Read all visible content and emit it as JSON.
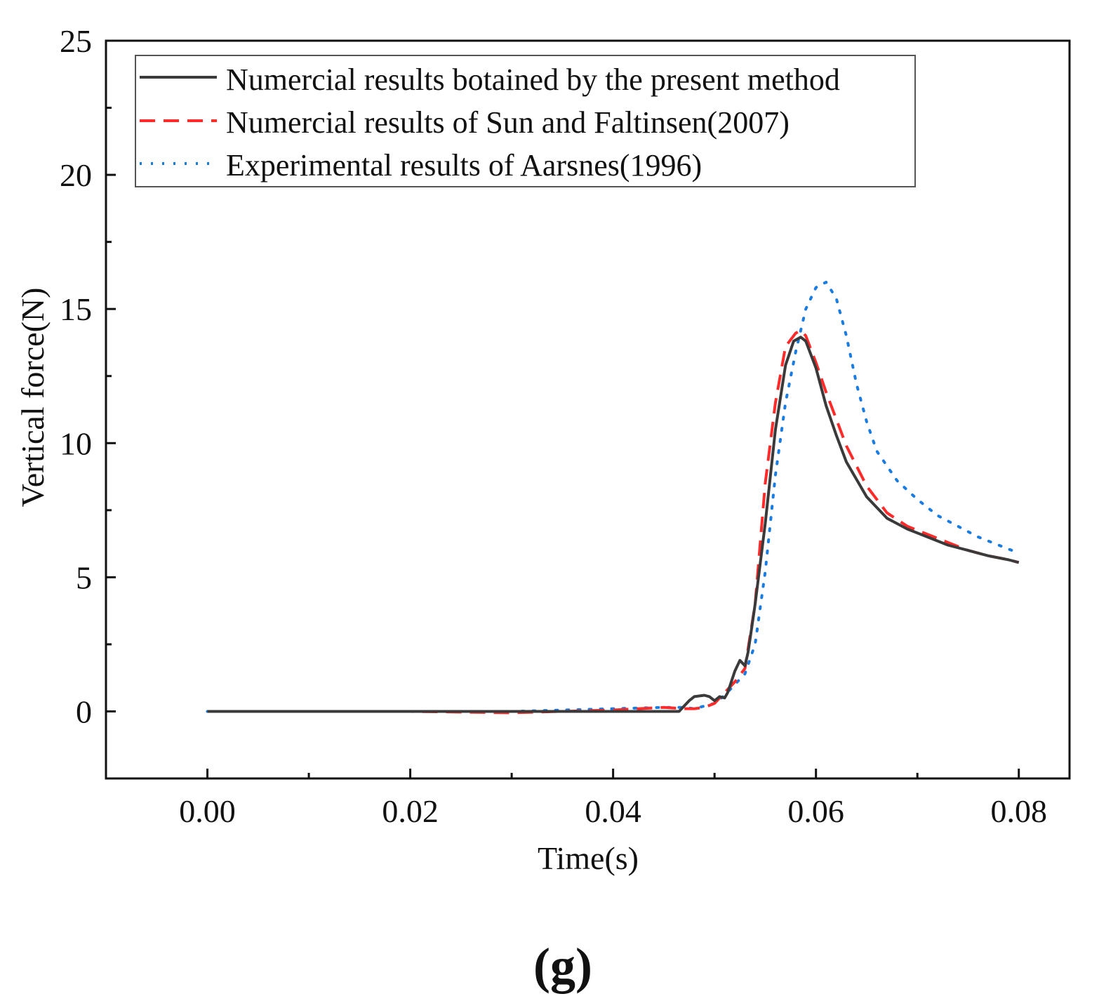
{
  "chart_data": {
    "type": "line",
    "title": "",
    "xlabel": "Time(s)",
    "ylabel": "Vertical force(N)",
    "xlim": [
      -0.01,
      0.085
    ],
    "ylim": [
      -2.5,
      25
    ],
    "xticks": [
      "0.00",
      "0.02",
      "0.04",
      "0.06",
      "0.08"
    ],
    "yticks": [
      "0",
      "5",
      "10",
      "15",
      "20",
      "25"
    ],
    "xtick_values": [
      0.0,
      0.02,
      0.04,
      0.06,
      0.08
    ],
    "ytick_values": [
      0,
      5,
      10,
      15,
      20,
      25
    ],
    "xminor": [
      0.01,
      0.03,
      0.05,
      0.07
    ],
    "yminor": [
      2.5,
      7.5,
      12.5,
      17.5,
      22.5
    ],
    "legend_position": "top-left",
    "panel_label": "(g)",
    "series": [
      {
        "name": "Numercial results botained by the present method",
        "color": "#3a3a3a",
        "style": "solid",
        "x": [
          0.0,
          0.01,
          0.02,
          0.03,
          0.04,
          0.0455,
          0.0465,
          0.0475,
          0.048,
          0.049,
          0.0495,
          0.05,
          0.0505,
          0.051,
          0.0513,
          0.052,
          0.0525,
          0.053,
          0.0533,
          0.0537,
          0.054,
          0.055,
          0.056,
          0.057,
          0.0578,
          0.0585,
          0.059,
          0.06,
          0.061,
          0.062,
          0.063,
          0.065,
          0.067,
          0.069,
          0.071,
          0.073,
          0.075,
          0.077,
          0.079,
          0.08
        ],
        "y": [
          0.0,
          0.0,
          0.0,
          0.0,
          0.0,
          0.0,
          0.0,
          0.4,
          0.55,
          0.6,
          0.55,
          0.4,
          0.55,
          0.5,
          0.7,
          1.5,
          1.9,
          1.7,
          2.2,
          3.2,
          4.0,
          7.0,
          10.5,
          12.9,
          13.8,
          13.95,
          13.8,
          12.8,
          11.4,
          10.3,
          9.3,
          8.0,
          7.2,
          6.8,
          6.5,
          6.2,
          6.0,
          5.8,
          5.65,
          5.55
        ]
      },
      {
        "name": "Numercial results of Sun and Faltinsen(2007)",
        "color": "#ff2a2a",
        "style": "dashed",
        "x": [
          0.0,
          0.01,
          0.02,
          0.03,
          0.04,
          0.045,
          0.047,
          0.048,
          0.049,
          0.05,
          0.051,
          0.052,
          0.053,
          0.054,
          0.055,
          0.056,
          0.057,
          0.058,
          0.0585,
          0.059,
          0.06,
          0.061,
          0.062,
          0.063,
          0.065,
          0.067,
          0.069,
          0.071,
          0.073,
          0.075,
          0.077,
          0.079,
          0.08
        ],
        "y": [
          0.0,
          0.0,
          0.0,
          -0.05,
          0.05,
          0.15,
          0.1,
          0.1,
          0.15,
          0.3,
          0.7,
          1.1,
          1.6,
          4.0,
          8.5,
          11.5,
          13.6,
          14.1,
          14.2,
          14.0,
          13.0,
          11.9,
          10.9,
          9.9,
          8.4,
          7.4,
          6.9,
          6.6,
          6.3,
          6.0,
          5.8,
          5.65,
          5.55
        ]
      },
      {
        "name": "Experimental results of Aarsnes(1996)",
        "color": "#1a7ce0",
        "style": "dotted",
        "x": [
          0.0,
          0.01,
          0.02,
          0.03,
          0.04,
          0.045,
          0.047,
          0.048,
          0.049,
          0.05,
          0.051,
          0.052,
          0.053,
          0.054,
          0.055,
          0.056,
          0.057,
          0.058,
          0.059,
          0.06,
          0.061,
          0.062,
          0.063,
          0.064,
          0.065,
          0.066,
          0.068,
          0.07,
          0.072,
          0.074,
          0.076,
          0.078,
          0.08
        ],
        "y": [
          0.0,
          0.0,
          0.0,
          0.0,
          0.1,
          0.15,
          0.15,
          0.1,
          0.2,
          0.3,
          0.6,
          1.0,
          1.4,
          2.5,
          5.2,
          8.8,
          11.5,
          13.4,
          15.0,
          15.8,
          16.0,
          15.4,
          14.0,
          12.2,
          10.8,
          9.7,
          8.6,
          7.9,
          7.3,
          6.9,
          6.5,
          6.2,
          5.9
        ]
      }
    ]
  }
}
